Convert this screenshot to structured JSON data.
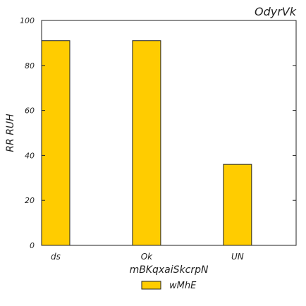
{
  "chart_data": {
    "type": "bar",
    "title": "OdyrVk",
    "xlabel": "mBKqxaiSkcrpN",
    "ylabel": "RR RUH",
    "categories": [
      "ds",
      "Ok",
      "UN"
    ],
    "series": [
      {
        "name": "wMhE",
        "values": [
          91,
          91,
          36
        ],
        "color": "#ffcc00"
      }
    ],
    "ylim": [
      0,
      100
    ],
    "yticks": [
      0,
      20,
      40,
      60,
      80,
      100
    ],
    "grid": false,
    "legend": "bottom-center"
  }
}
